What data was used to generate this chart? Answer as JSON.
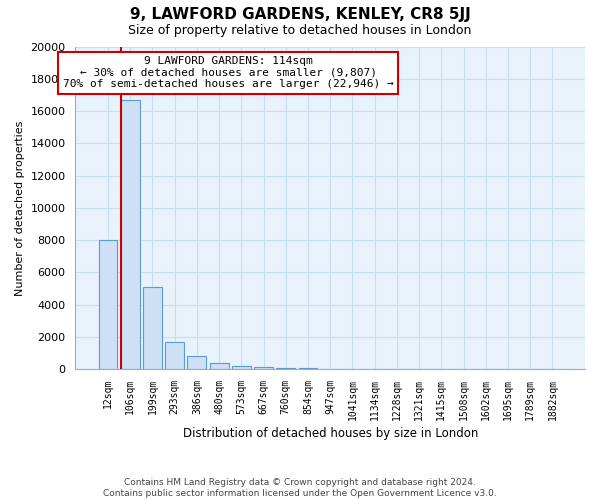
{
  "title": "9, LAWFORD GARDENS, KENLEY, CR8 5JJ",
  "subtitle": "Size of property relative to detached houses in London",
  "xlabel": "Distribution of detached houses by size in London",
  "ylabel": "Number of detached properties",
  "categories": [
    "12sqm",
    "106sqm",
    "199sqm",
    "293sqm",
    "386sqm",
    "480sqm",
    "573sqm",
    "667sqm",
    "760sqm",
    "854sqm",
    "947sqm",
    "1041sqm",
    "1134sqm",
    "1228sqm",
    "1321sqm",
    "1415sqm",
    "1508sqm",
    "1602sqm",
    "1695sqm",
    "1789sqm",
    "1882sqm"
  ],
  "values": [
    8000,
    16700,
    5100,
    1700,
    820,
    380,
    200,
    110,
    70,
    45,
    30,
    22,
    15,
    11,
    8,
    6,
    4,
    3,
    2,
    2,
    1
  ],
  "bar_color": "#cde0f5",
  "bar_edge_color": "#5b9bd5",
  "highlight_bar_index": 1,
  "highlight_line_color": "#cc0000",
  "ylim": [
    0,
    20000
  ],
  "yticks": [
    0,
    2000,
    4000,
    6000,
    8000,
    10000,
    12000,
    14000,
    16000,
    18000,
    20000
  ],
  "annotation_text": "9 LAWFORD GARDENS: 114sqm\n← 30% of detached houses are smaller (9,807)\n70% of semi-detached houses are larger (22,946) →",
  "annotation_box_color": "#ffffff",
  "annotation_border_color": "#cc0000",
  "grid_color": "#c8ddf0",
  "background_color": "#e8f2fb",
  "footer_line1": "Contains HM Land Registry data © Crown copyright and database right 2024.",
  "footer_line2": "Contains public sector information licensed under the Open Government Licence v3.0."
}
